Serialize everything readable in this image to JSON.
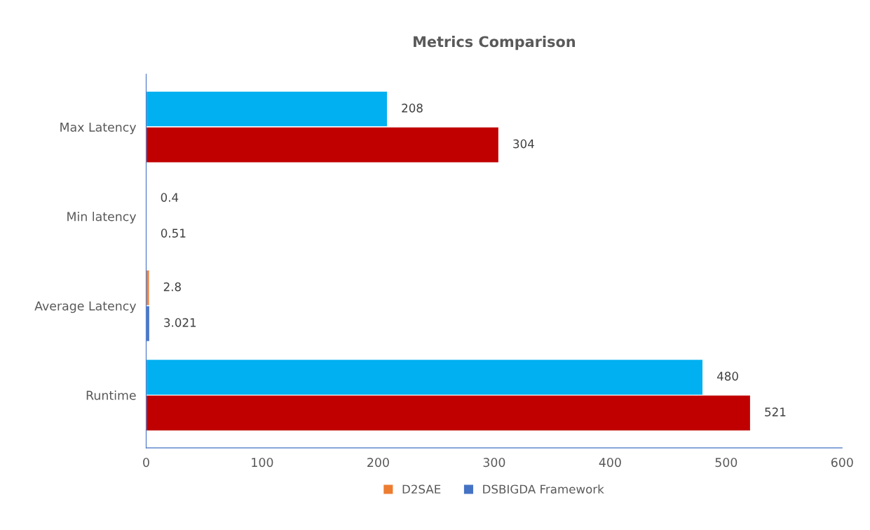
{
  "chart_data": {
    "type": "bar",
    "orientation": "horizontal",
    "title": "Metrics Comparison",
    "categories": [
      "Max Latency",
      "Min latency",
      "Average Latency",
      "Runtime"
    ],
    "series": [
      {
        "name": "D2SAE",
        "color": "#ed7d31",
        "colors": [
          "#00b0f0",
          "#ed7d31",
          "#ed7d31",
          "#00b0f0"
        ],
        "values": [
          208,
          0.4,
          2.8,
          480
        ]
      },
      {
        "name": "DSBIGDA Framework",
        "color": "#4472c4",
        "colors": [
          "#c00000",
          "#4472c4",
          "#4472c4",
          "#c00000"
        ],
        "values": [
          304,
          0.51,
          3.021,
          521
        ]
      }
    ],
    "xlim": [
      0,
      600
    ],
    "xticks": [
      0,
      100,
      200,
      300,
      400,
      500,
      600
    ],
    "data_labels": true,
    "grid": false,
    "legend": "bottom"
  }
}
